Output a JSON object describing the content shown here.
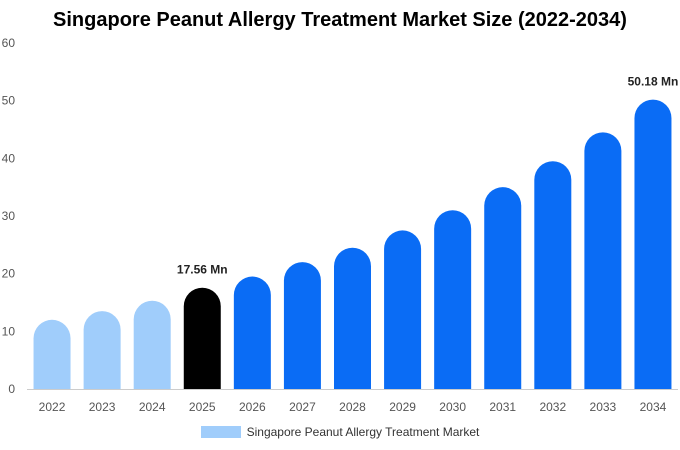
{
  "chart_data": {
    "type": "bar",
    "title": "Singapore Peanut Allergy Treatment Market Size (2022-2034)",
    "xlabel": "",
    "ylabel": "",
    "categories": [
      "2022",
      "2023",
      "2024",
      "2025",
      "2026",
      "2027",
      "2028",
      "2029",
      "2030",
      "2031",
      "2032",
      "2033",
      "2034"
    ],
    "series": [
      {
        "name": "Singapore Peanut Allergy Treatment Market",
        "values": [
          12.0,
          13.5,
          15.3,
          17.56,
          19.5,
          22.0,
          24.5,
          27.5,
          31.0,
          35.0,
          39.5,
          44.5,
          50.18
        ]
      }
    ],
    "ylim": [
      0,
      60
    ],
    "yticks": [
      0,
      10,
      20,
      30,
      40,
      50,
      60
    ],
    "data_labels": [
      {
        "category": "2025",
        "text": "17.56 Mn"
      },
      {
        "category": "2034",
        "text": "50.18 Mn"
      }
    ],
    "colors": {
      "historical": "#a0cdfb",
      "current": "#000000",
      "forecast": "#0a6cf5",
      "legend": "#a0cdfb"
    },
    "grid": false,
    "legend_position": "bottom"
  }
}
